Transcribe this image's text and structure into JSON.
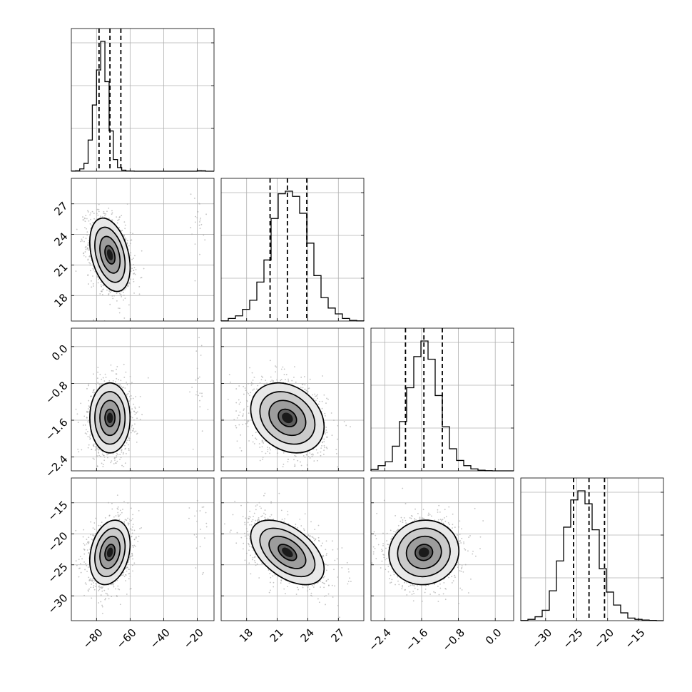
{
  "chart_data": {
    "type": "corner",
    "n_params": 4,
    "params": [
      {
        "id": "p0",
        "axis_range": [
          -95,
          -10
        ],
        "ticks": [
          -80,
          -60,
          -40,
          -20
        ],
        "tick_labels": [
          "−80",
          "−60",
          "−40",
          "−20"
        ],
        "quantiles": [
          -78.5,
          -72,
          -65.5
        ],
        "mean": -72,
        "sd": 6
      },
      {
        "id": "p1",
        "axis_range": [
          15.5,
          29.5
        ],
        "ticks": [
          18,
          21,
          24,
          27
        ],
        "tick_labels": [
          "18",
          "21",
          "24",
          "27"
        ],
        "quantiles": [
          20.3,
          22.0,
          23.9
        ],
        "mean": 22.1,
        "sd": 1.8
      },
      {
        "id": "p2",
        "axis_range": [
          -2.7,
          0.4
        ],
        "ticks": [
          -2.4,
          -1.6,
          -0.8,
          0.0
        ],
        "tick_labels": [
          "−2.4",
          "−1.6",
          "−0.8",
          "0.0"
        ],
        "quantiles": [
          -1.95,
          -1.55,
          -1.15
        ],
        "mean": -1.55,
        "sd": 0.38
      },
      {
        "id": "p3",
        "axis_range": [
          -34,
          -11
        ],
        "ticks": [
          -30,
          -25,
          -20,
          -15
        ],
        "tick_labels": [
          "−30",
          "−25",
          "−20",
          "−15"
        ],
        "quantiles": [
          -25.5,
          -23.0,
          -20.5
        ],
        "mean": -23,
        "sd": 2.6
      }
    ],
    "histograms": [
      {
        "param": 0,
        "bin_edges": [
          -95,
          -92.5,
          -90,
          -87.5,
          -85,
          -82.5,
          -80,
          -77.5,
          -75,
          -72.5,
          -70,
          -67.5,
          -65,
          -62.5,
          -60,
          -57.5,
          -55,
          -52.5,
          -50,
          -47.5,
          -45,
          -42.5,
          -40,
          -37.5,
          -35,
          -32.5,
          -30,
          -27.5,
          -25,
          -22.5,
          -20,
          -17.5,
          -15,
          -12.5,
          -10
        ],
        "counts": [
          1,
          3,
          18,
          60,
          240,
          510,
          780,
          1000,
          690,
          310,
          90,
          28,
          8,
          2,
          1,
          0,
          0,
          0,
          0,
          0,
          0,
          0,
          0,
          0,
          0,
          0,
          0,
          0,
          0,
          0,
          4,
          3,
          0,
          0
        ]
      },
      {
        "param": 1,
        "bin_edges": [
          15.5,
          16.2,
          16.9,
          17.6,
          18.3,
          19.0,
          19.7,
          20.4,
          21.1,
          21.8,
          22.5,
          23.2,
          23.9,
          24.6,
          25.3,
          26.0,
          26.7,
          27.4,
          28.1,
          28.8,
          29.5
        ],
        "counts": [
          1,
          20,
          40,
          90,
          160,
          300,
          470,
          790,
          980,
          1000,
          960,
          830,
          600,
          350,
          180,
          100,
          55,
          20,
          5,
          1
        ]
      },
      {
        "param": 2,
        "bin_edges": [
          -2.7,
          -2.545,
          -2.39,
          -2.235,
          -2.08,
          -1.925,
          -1.77,
          -1.615,
          -1.46,
          -1.305,
          -1.15,
          -0.995,
          -0.84,
          -0.685,
          -0.53,
          -0.375,
          -0.22,
          -0.065,
          0.09,
          0.245,
          0.4
        ],
        "counts": [
          10,
          40,
          70,
          190,
          380,
          640,
          880,
          1000,
          860,
          580,
          340,
          170,
          80,
          40,
          15,
          5,
          1,
          0,
          0,
          0
        ]
      },
      {
        "param": 3,
        "bin_edges": [
          -34,
          -32.85,
          -31.7,
          -30.55,
          -29.4,
          -28.25,
          -27.1,
          -25.95,
          -24.8,
          -23.65,
          -22.5,
          -21.35,
          -20.2,
          -19.05,
          -17.9,
          -16.75,
          -15.6,
          -14.45,
          -13.3,
          -12.15,
          -11
        ],
        "counts": [
          1,
          10,
          30,
          80,
          230,
          460,
          720,
          930,
          1000,
          900,
          700,
          400,
          220,
          120,
          60,
          20,
          10,
          5,
          2,
          0
        ]
      }
    ],
    "pairs": [
      {
        "x": 0,
        "y": 1,
        "center": [
          -72,
          22
        ],
        "correlation": -0.35
      },
      {
        "x": 0,
        "y": 2,
        "center": [
          -72,
          -1.55
        ],
        "correlation": 0.0
      },
      {
        "x": 1,
        "y": 2,
        "center": [
          22.0,
          -1.55
        ],
        "correlation": -0.25
      },
      {
        "x": 0,
        "y": 3,
        "center": [
          -72,
          -23
        ],
        "correlation": 0.25
      },
      {
        "x": 1,
        "y": 3,
        "center": [
          22.0,
          -23
        ],
        "correlation": -0.5
      },
      {
        "x": 2,
        "y": 3,
        "center": [
          -1.55,
          -23
        ],
        "correlation": 0.05
      }
    ],
    "contour_sigma_levels": [
      0.5,
      1.0,
      1.5,
      2.0
    ],
    "grid": true,
    "colors": {
      "line": "#000000",
      "grid": "#b0b0b0",
      "points": "#aaaaaa"
    }
  }
}
